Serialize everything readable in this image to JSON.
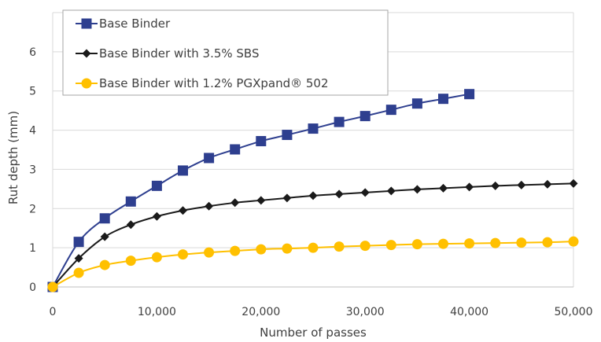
{
  "chart_data": {
    "type": "line",
    "xlabel": "Number of passes",
    "ylabel": "Rut depth (mm)",
    "xlim": [
      0,
      50000
    ],
    "ylim": [
      0,
      7
    ],
    "xticks": [
      0,
      10000,
      20000,
      30000,
      40000,
      50000
    ],
    "xtick_labels": [
      "0",
      "10,000",
      "20,000",
      "30,000",
      "40,000",
      "50,000"
    ],
    "yticks": [
      0,
      1,
      2,
      3,
      4,
      5,
      6
    ],
    "ytick_labels": [
      "0",
      "1",
      "2",
      "3",
      "4",
      "5",
      "6"
    ],
    "grid": "horizontal",
    "legend_position": "top-left",
    "series": [
      {
        "name": "Base Binder",
        "color": "#2E3F8F",
        "marker": "square",
        "x": [
          0,
          2500,
          5000,
          7500,
          10000,
          12500,
          15000,
          17500,
          20000,
          22500,
          25000,
          27500,
          30000,
          32500,
          35000,
          37500,
          40000
        ],
        "values": [
          0,
          1.15,
          1.75,
          2.18,
          2.58,
          2.97,
          3.29,
          3.51,
          3.72,
          3.88,
          4.04,
          4.21,
          4.36,
          4.52,
          4.68,
          4.8,
          4.92
        ]
      },
      {
        "name": "Base Binder with 3.5% SBS",
        "color": "#1a1a1a",
        "marker": "diamond",
        "x": [
          0,
          2500,
          5000,
          7500,
          10000,
          12500,
          15000,
          17500,
          20000,
          22500,
          25000,
          27500,
          30000,
          32500,
          35000,
          37500,
          40000,
          42500,
          45000,
          47500,
          50000
        ],
        "values": [
          0,
          0.73,
          1.28,
          1.59,
          1.8,
          1.95,
          2.06,
          2.15,
          2.21,
          2.27,
          2.33,
          2.37,
          2.41,
          2.45,
          2.49,
          2.52,
          2.55,
          2.58,
          2.6,
          2.62,
          2.64
        ]
      },
      {
        "name": "Base Binder with 1.2% PGXpand® 502",
        "color": "#FFC000",
        "marker": "circle",
        "x": [
          0,
          2500,
          5000,
          7500,
          10000,
          12500,
          15000,
          17500,
          20000,
          22500,
          25000,
          27500,
          30000,
          32500,
          35000,
          37500,
          40000,
          42500,
          45000,
          47500,
          50000
        ],
        "values": [
          0,
          0.36,
          0.56,
          0.67,
          0.76,
          0.83,
          0.88,
          0.92,
          0.96,
          0.98,
          1.0,
          1.03,
          1.05,
          1.07,
          1.09,
          1.1,
          1.11,
          1.12,
          1.13,
          1.14,
          1.16
        ]
      }
    ]
  }
}
